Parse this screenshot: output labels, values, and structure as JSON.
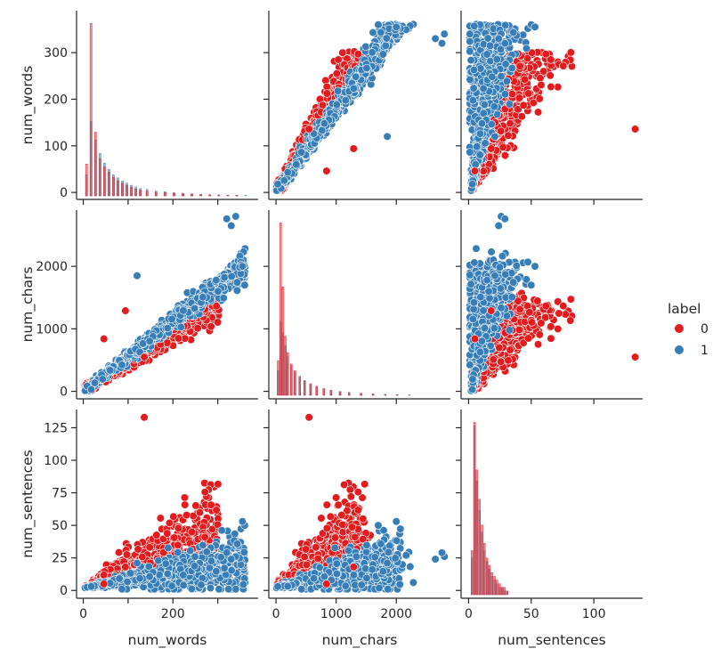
{
  "chart_data": {
    "type": "scatter",
    "variables": [
      "num_words",
      "num_chars",
      "num_sentences"
    ],
    "ranges": {
      "num_words": [
        -15,
        390
      ],
      "num_chars": [
        -120,
        2900
      ],
      "num_sentences": [
        -6,
        139
      ]
    },
    "ticks": {
      "num_words": [
        0,
        100,
        200,
        300
      ],
      "num_chars": [
        0,
        1000,
        2000
      ],
      "num_sentences": [
        0,
        25,
        50,
        75,
        100,
        125
      ],
      "num_sentences_x": [
        0,
        50,
        100
      ]
    },
    "hue": {
      "title": "label",
      "levels": [
        {
          "name": "0",
          "color": "#e41a1c"
        },
        {
          "name": "1",
          "color": "#377eb8"
        }
      ]
    },
    "scatter_clusters": {
      "label_0": {
        "num_words": [
          6,
          10,
          15,
          20,
          25,
          30,
          40,
          50,
          60,
          70,
          80,
          90,
          100,
          110,
          120,
          130,
          140,
          150,
          160,
          170,
          180,
          190,
          200,
          210,
          220,
          230,
          240,
          250,
          260,
          270,
          280
        ],
        "num_chars": [
          30,
          60,
          90,
          120,
          150,
          180,
          240,
          300,
          360,
          420,
          480,
          540,
          600,
          660,
          720,
          780,
          840,
          900,
          960,
          1020,
          1080,
          1140,
          1200,
          1260,
          1320,
          1380,
          1440,
          1500,
          1560,
          1620,
          1680
        ],
        "num_sentences": [
          2,
          3,
          4,
          5,
          6,
          8,
          10,
          12,
          14,
          16,
          18,
          20,
          22,
          24,
          26,
          28,
          30,
          32,
          34,
          36,
          38,
          40,
          42,
          44,
          46,
          48,
          50,
          52,
          54,
          56,
          58
        ]
      },
      "label_1": {
        "num_words": [
          10,
          20,
          40,
          60,
          80,
          100,
          120,
          140,
          160,
          180,
          200,
          220,
          240,
          260,
          280,
          300,
          320,
          340,
          360
        ],
        "num_chars": [
          70,
          140,
          280,
          420,
          560,
          700,
          840,
          980,
          1120,
          1260,
          1400,
          1540,
          1680,
          1820,
          1960,
          2100,
          2240,
          2380,
          2520
        ],
        "num_sentences": [
          1,
          2,
          4,
          5,
          7,
          8,
          10,
          11,
          13,
          14,
          16,
          17,
          19,
          20,
          22,
          23,
          25,
          26,
          28
        ]
      }
    },
    "outliers": [
      {
        "label": "0",
        "num_words": 136,
        "num_chars": 548,
        "num_sentences": 133
      },
      {
        "label": "1",
        "num_words": 120,
        "num_chars": 1850,
        "num_sentences": 21
      },
      {
        "label": "1",
        "num_words": 340,
        "num_chars": 2800,
        "num_sentences": 26
      },
      {
        "label": "1",
        "num_words": 330,
        "num_chars": 2650,
        "num_sentences": 24
      },
      {
        "label": "1",
        "num_words": 320,
        "num_chars": 2760,
        "num_sentences": 29
      },
      {
        "label": "0",
        "num_words": 94,
        "num_chars": 1290,
        "num_sentences": 18
      },
      {
        "label": "0",
        "num_words": 46,
        "num_chars": 840,
        "num_sentences": 5
      },
      {
        "label": "1",
        "num_words": 360,
        "num_chars": 1700,
        "num_sentences": 50
      },
      {
        "label": "1",
        "num_words": 355,
        "num_chars": 2000,
        "num_sentences": 53
      }
    ],
    "histograms": {
      "num_words": {
        "bins": [
          5,
          15,
          25,
          35,
          45,
          55,
          65,
          75,
          85,
          95,
          105,
          115,
          125,
          140,
          160,
          180,
          200,
          220,
          240,
          260,
          280,
          300,
          320,
          340,
          360
        ],
        "label_0": [
          60,
          325,
          120,
          70,
          55,
          45,
          35,
          28,
          24,
          20,
          16,
          13,
          11,
          9,
          7,
          6,
          5,
          4,
          3,
          2,
          2,
          1,
          1,
          1,
          0
        ],
        "label_1": [
          40,
          140,
          105,
          80,
          62,
          50,
          40,
          34,
          28,
          24,
          20,
          17,
          14,
          12,
          9,
          8,
          6,
          5,
          4,
          3,
          2,
          2,
          1,
          1,
          1
        ]
      },
      "num_chars": {
        "bins": [
          20,
          60,
          100,
          140,
          180,
          240,
          300,
          380,
          460,
          560,
          660,
          780,
          900,
          1050,
          1200,
          1400,
          1600,
          1800,
          2000,
          2200
        ],
        "label_0": [
          420,
          2100,
          1320,
          720,
          520,
          380,
          300,
          230,
          180,
          140,
          110,
          80,
          60,
          45,
          32,
          22,
          14,
          9,
          5,
          3
        ],
        "label_1": [
          300,
          900,
          760,
          600,
          470,
          360,
          280,
          220,
          170,
          130,
          100,
          80,
          60,
          45,
          34,
          25,
          18,
          12,
          8,
          5
        ]
      },
      "num_sentences": {
        "bins": [
          2,
          4,
          6,
          8,
          10,
          12,
          14,
          16,
          18,
          20,
          22,
          24,
          26,
          28,
          30
        ],
        "label_0": [
          12,
          47,
          34,
          26,
          19,
          14,
          10,
          8,
          6,
          5,
          4,
          3,
          2,
          2,
          1
        ],
        "label_1": [
          10,
          46,
          31,
          23,
          17,
          12,
          9,
          7,
          5,
          4,
          3,
          2,
          2,
          1,
          1
        ]
      }
    }
  }
}
